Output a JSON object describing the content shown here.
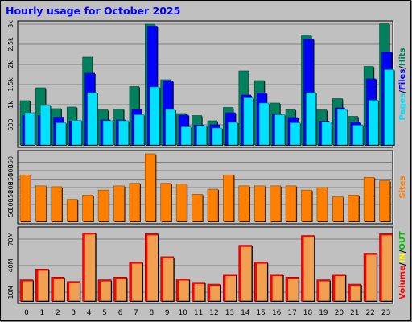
{
  "title": "Hourly usage for October 2025",
  "colors": {
    "background": "#c0c0c0",
    "title": "#0000ff",
    "grid": "#808080",
    "hits": "#00805c",
    "files": "#0000ff",
    "pages": "#00e0ff",
    "sites": "#ff8000",
    "volume": "#ff0000",
    "volume_fill": "#f0a050",
    "in": "#ffff00",
    "out": "#00c000",
    "axis_text": "#000000"
  },
  "chart_data": [
    {
      "type": "bar",
      "panel": "hits-files-pages",
      "categories": [
        "0",
        "1",
        "2",
        "3",
        "4",
        "5",
        "6",
        "7",
        "8",
        "9",
        "10",
        "11",
        "12",
        "13",
        "14",
        "15",
        "16",
        "17",
        "18",
        "19",
        "20",
        "21",
        "22",
        "23"
      ],
      "y_ticks": [
        "500",
        "1k",
        "1.5k",
        "2k",
        "2.5k",
        "3k"
      ],
      "ylim": [
        0,
        3000
      ],
      "side_label": [
        {
          "text": "Pages",
          "color": "#00e0ff"
        },
        {
          "text": "/",
          "color": "#000000"
        },
        {
          "text": "Files",
          "color": "#0000ff"
        },
        {
          "text": "/",
          "color": "#000000"
        },
        {
          "text": "Hits",
          "color": "#00805c"
        }
      ],
      "series": [
        {
          "name": "Hits",
          "color": "#00805c",
          "values": [
            1100,
            1420,
            900,
            940,
            2180,
            870,
            890,
            1450,
            3000,
            1620,
            780,
            730,
            600,
            930,
            1840,
            1600,
            1040,
            880,
            2730,
            870,
            1150,
            710,
            1950,
            3010
          ]
        },
        {
          "name": "Files",
          "color": "#0000ff",
          "values": [
            730,
            730,
            690,
            590,
            1780,
            620,
            620,
            880,
            2950,
            1590,
            740,
            490,
            500,
            800,
            1240,
            1290,
            760,
            680,
            2630,
            590,
            920,
            570,
            1640,
            2310
          ]
        },
        {
          "name": "Pages",
          "color": "#00e0ff",
          "values": [
            800,
            980,
            550,
            610,
            1300,
            600,
            600,
            750,
            1440,
            880,
            450,
            470,
            420,
            560,
            1170,
            1040,
            750,
            550,
            1300,
            570,
            880,
            490,
            1110,
            1870
          ]
        }
      ]
    },
    {
      "type": "bar",
      "panel": "sites",
      "categories": [
        "0",
        "1",
        "2",
        "3",
        "4",
        "5",
        "6",
        "7",
        "8",
        "9",
        "10",
        "11",
        "12",
        "13",
        "14",
        "15",
        "16",
        "17",
        "18",
        "19",
        "20",
        "21",
        "22",
        "23"
      ],
      "y_ticks": [
        "50",
        "100",
        "150",
        "200",
        "250",
        "300",
        "350"
      ],
      "ylim": [
        0,
        400
      ],
      "side_label": [
        {
          "text": "Sites",
          "color": "#ff8000"
        }
      ],
      "series": [
        {
          "name": "Sites",
          "color": "#ff8000",
          "values": [
            275,
            210,
            205,
            130,
            155,
            185,
            210,
            225,
            400,
            225,
            220,
            160,
            190,
            275,
            210,
            210,
            210,
            210,
            185,
            200,
            145,
            155,
            260,
            240
          ]
        }
      ]
    },
    {
      "type": "bar",
      "panel": "volume",
      "categories": [
        "0",
        "1",
        "2",
        "3",
        "4",
        "5",
        "6",
        "7",
        "8",
        "9",
        "10",
        "11",
        "12",
        "13",
        "14",
        "15",
        "16",
        "17",
        "18",
        "19",
        "20",
        "21",
        "22",
        "23"
      ],
      "y_ticks": [
        "10M",
        "40M",
        "70M"
      ],
      "ylim": [
        0,
        80
      ],
      "side_label": [
        {
          "text": "Volume",
          "color": "#ff0000"
        },
        {
          "text": "/",
          "color": "#000000"
        },
        {
          "text": "IN",
          "color": "#ffff00"
        },
        {
          "text": "/",
          "color": "#000000"
        },
        {
          "text": "OUT",
          "color": "#00c000"
        }
      ],
      "series": [
        {
          "name": "Volume",
          "color": "#ff0000",
          "values": [
            24,
            36,
            27,
            22,
            77,
            24,
            27,
            44,
            76,
            50,
            25,
            21,
            19,
            30,
            63,
            44,
            30,
            27,
            74,
            24,
            30,
            19,
            54,
            76
          ]
        }
      ]
    }
  ]
}
